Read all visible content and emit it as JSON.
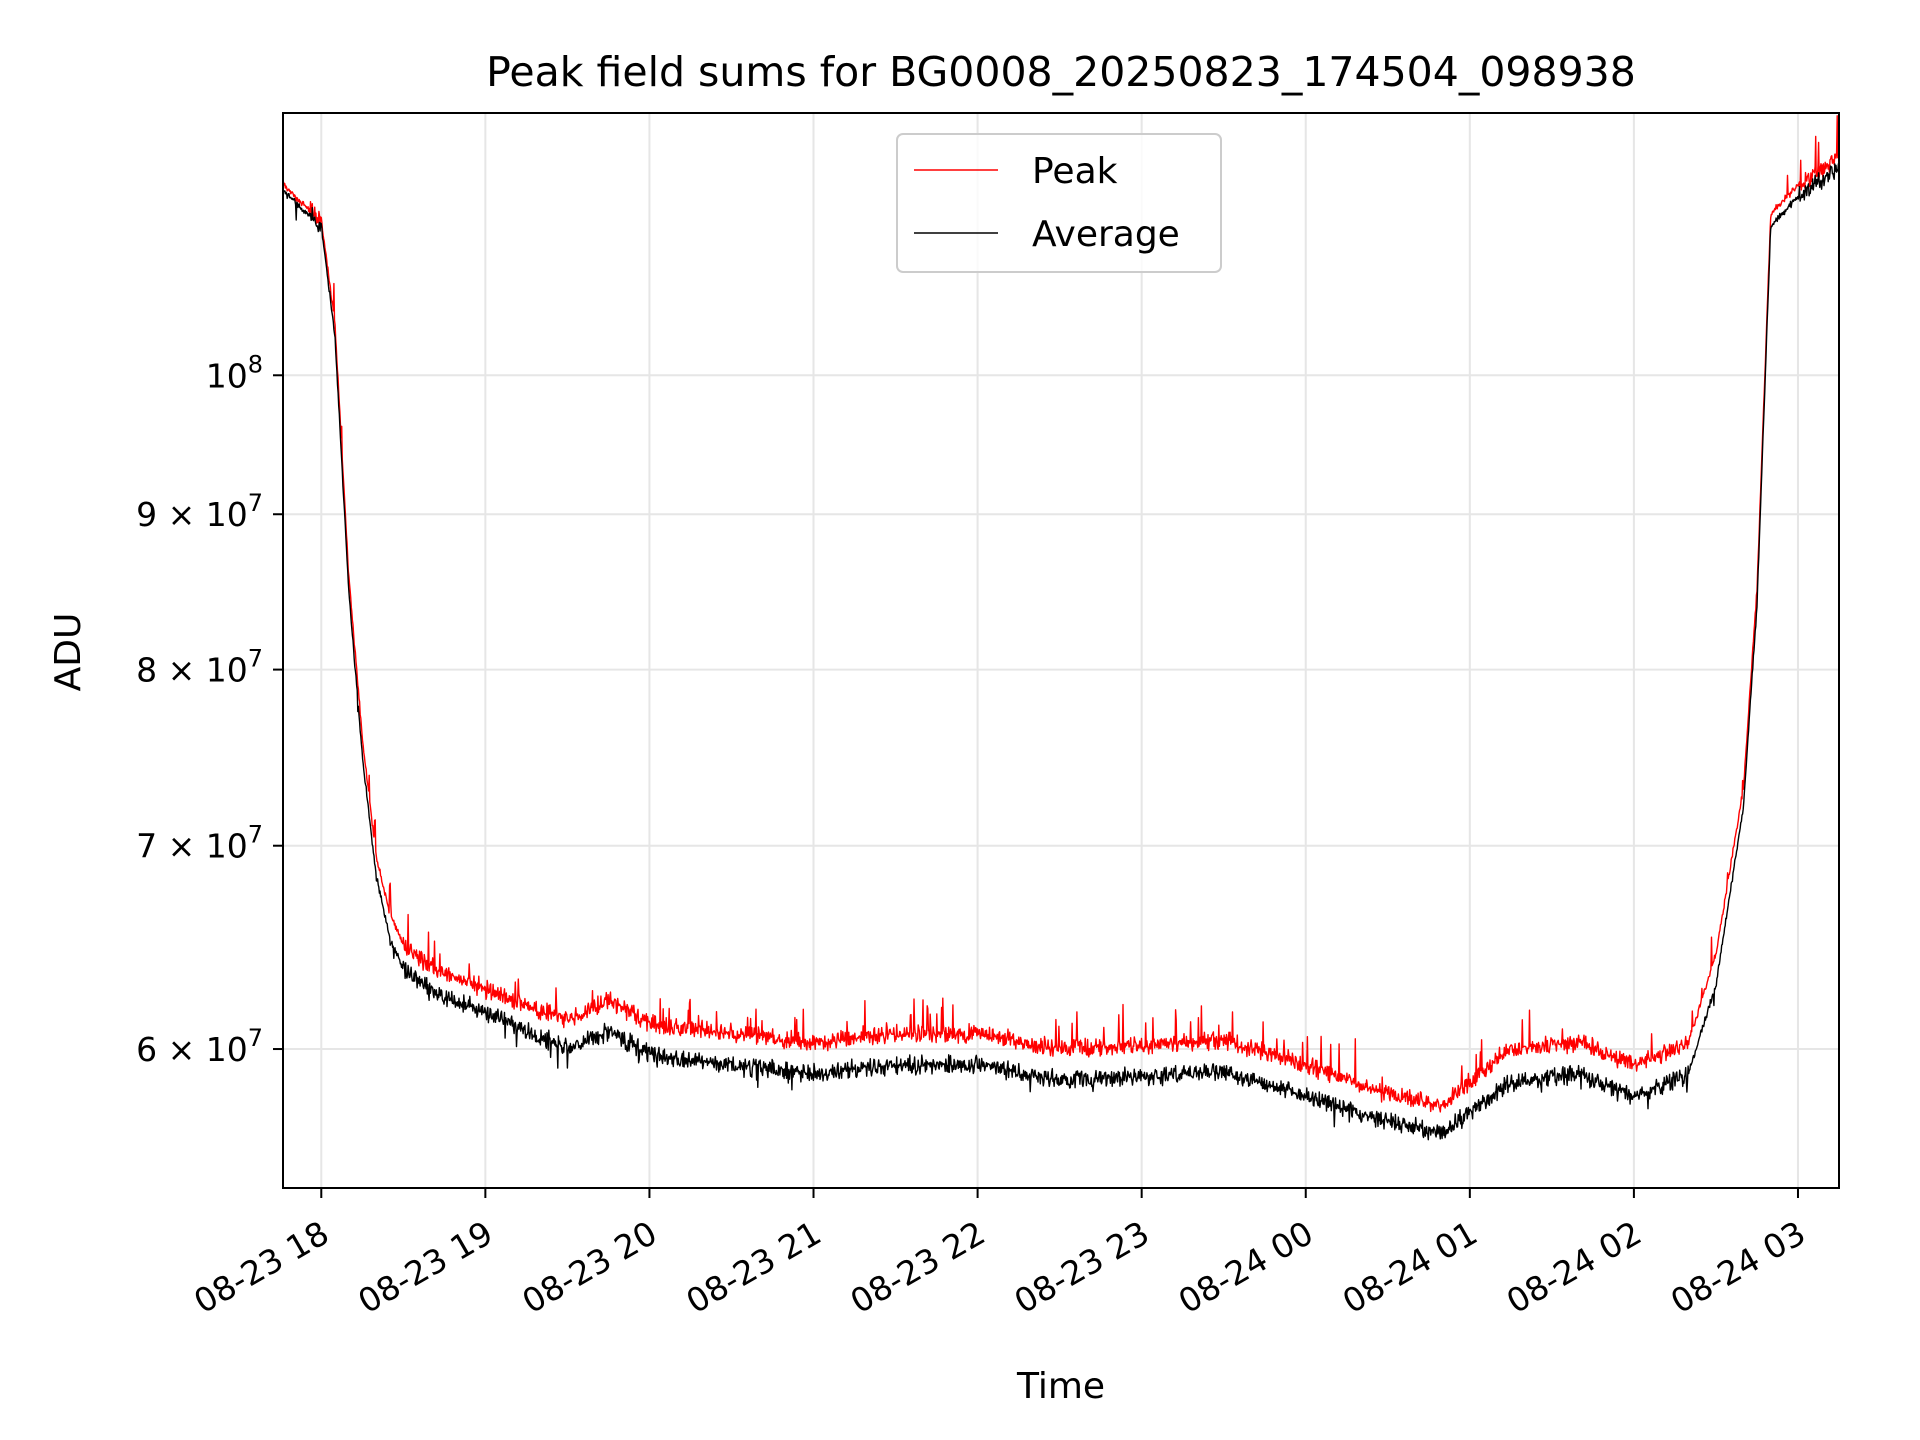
{
  "chart_data": {
    "type": "line",
    "title": "Peak field sums for BG0008_20250823_174504_098938",
    "xlabel": "Time",
    "ylabel": "ADU",
    "y_scale": "log",
    "grid": true,
    "legend_position": "upper center",
    "xlim": [
      "2025-08-23 17:46",
      "2025-08-24 03:15"
    ],
    "ylim": [
      54000000,
      122000000
    ],
    "x_ticks": [
      {
        "value": "2025-08-23 18:00",
        "label": "08-23 18"
      },
      {
        "value": "2025-08-23 19:00",
        "label": "08-23 19"
      },
      {
        "value": "2025-08-23 20:00",
        "label": "08-23 20"
      },
      {
        "value": "2025-08-23 21:00",
        "label": "08-23 21"
      },
      {
        "value": "2025-08-23 22:00",
        "label": "08-23 22"
      },
      {
        "value": "2025-08-23 23:00",
        "label": "08-23 23"
      },
      {
        "value": "2025-08-24 00:00",
        "label": "08-24 00"
      },
      {
        "value": "2025-08-24 01:00",
        "label": "08-24 01"
      },
      {
        "value": "2025-08-24 02:00",
        "label": "08-24 02"
      },
      {
        "value": "2025-08-24 03:00",
        "label": "08-24 03"
      }
    ],
    "y_ticks": [
      {
        "value": 60000000,
        "coef": "6",
        "exp": "7"
      },
      {
        "value": 70000000,
        "coef": "7",
        "exp": "7"
      },
      {
        "value": 80000000,
        "coef": "8",
        "exp": "7"
      },
      {
        "value": 90000000,
        "coef": "9",
        "exp": "7"
      },
      {
        "value": 100000000,
        "coef": "",
        "exp": "8"
      }
    ],
    "series": [
      {
        "name": "Peak",
        "color": "#ff0000",
        "x": [
          "2025-08-23 17:46",
          "2025-08-23 17:55",
          "2025-08-23 18:00",
          "2025-08-23 18:05",
          "2025-08-23 18:10",
          "2025-08-23 18:15",
          "2025-08-23 18:20",
          "2025-08-23 18:25",
          "2025-08-23 18:30",
          "2025-08-23 18:40",
          "2025-08-23 19:00",
          "2025-08-23 19:30",
          "2025-08-23 19:45",
          "2025-08-23 20:00",
          "2025-08-23 20:30",
          "2025-08-23 21:00",
          "2025-08-23 21:30",
          "2025-08-23 22:00",
          "2025-08-23 22:30",
          "2025-08-23 23:00",
          "2025-08-23 23:30",
          "2025-08-24 00:00",
          "2025-08-24 00:30",
          "2025-08-24 00:50",
          "2025-08-24 01:15",
          "2025-08-24 01:40",
          "2025-08-24 02:00",
          "2025-08-24 02:20",
          "2025-08-24 02:30",
          "2025-08-24 02:40",
          "2025-08-24 02:45",
          "2025-08-24 02:50",
          "2025-08-24 03:00",
          "2025-08-24 03:15"
        ],
        "y": [
          115500000,
          113500000,
          112500000,
          104000000,
          86000000,
          76000000,
          69500000,
          66500000,
          65000000,
          63800000,
          62800000,
          61300000,
          62300000,
          61200000,
          60700000,
          60300000,
          60700000,
          60700000,
          60000000,
          60200000,
          60400000,
          59300000,
          58000000,
          57500000,
          60000000,
          60300000,
          59300000,
          60300000,
          64500000,
          73000000,
          85000000,
          113000000,
          115500000,
          118000000
        ]
      },
      {
        "name": "Average",
        "color": "#000000",
        "x": [
          "2025-08-23 17:46",
          "2025-08-23 17:55",
          "2025-08-23 18:00",
          "2025-08-23 18:05",
          "2025-08-23 18:10",
          "2025-08-23 18:15",
          "2025-08-23 18:20",
          "2025-08-23 18:25",
          "2025-08-23 18:30",
          "2025-08-23 18:40",
          "2025-08-23 19:00",
          "2025-08-23 19:30",
          "2025-08-23 19:45",
          "2025-08-23 20:00",
          "2025-08-23 20:30",
          "2025-08-23 21:00",
          "2025-08-23 21:30",
          "2025-08-23 22:00",
          "2025-08-23 22:30",
          "2025-08-23 23:00",
          "2025-08-23 23:30",
          "2025-08-24 00:00",
          "2025-08-24 00:30",
          "2025-08-24 00:50",
          "2025-08-24 01:15",
          "2025-08-24 01:40",
          "2025-08-24 02:00",
          "2025-08-24 02:20",
          "2025-08-24 02:30",
          "2025-08-24 02:40",
          "2025-08-24 02:45",
          "2025-08-24 02:50",
          "2025-08-24 03:00",
          "2025-08-24 03:15"
        ],
        "y": [
          115000000,
          113000000,
          112000000,
          103000000,
          85000000,
          75000000,
          68500000,
          65300000,
          63800000,
          62700000,
          61700000,
          60000000,
          60800000,
          59800000,
          59300000,
          58900000,
          59300000,
          59300000,
          58600000,
          58800000,
          59000000,
          57900000,
          56800000,
          56300000,
          58500000,
          58900000,
          57900000,
          58900000,
          63000000,
          72000000,
          84000000,
          112000000,
          114500000,
          117000000
        ]
      }
    ]
  }
}
